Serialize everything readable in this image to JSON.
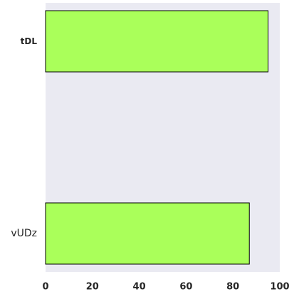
{
  "chart_data": {
    "type": "bar",
    "orientation": "horizontal",
    "categories": [
      "tDL",
      "vUDz"
    ],
    "category_label_bold": [
      true,
      false
    ],
    "values": [
      95,
      87
    ],
    "xlim": [
      0,
      100
    ],
    "xticks": [
      "0",
      "20",
      "40",
      "60",
      "80",
      "100"
    ],
    "title": "",
    "xlabel": "",
    "ylabel": "",
    "grid": false,
    "legend": "none",
    "colors": {
      "background": "#eaeaf2",
      "bar_fill": "#aaff5a",
      "bar_edge": "#000000",
      "text": "#262626"
    }
  }
}
